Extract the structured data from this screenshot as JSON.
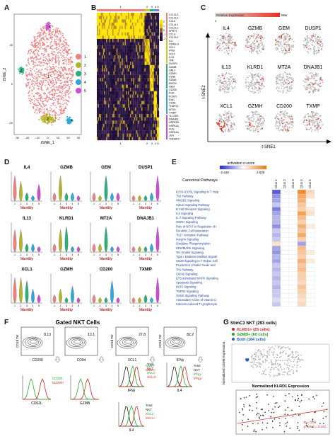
{
  "panels": {
    "A": {
      "letter": "A",
      "xlabel": "tSNE_1",
      "ylabel": "tSNE_2",
      "xticks": [
        "-30",
        "-20",
        "-10",
        "0",
        "10",
        "20",
        "30"
      ],
      "yticks": [
        "20",
        "0",
        "-20"
      ],
      "clusters": [
        {
          "id": "1",
          "color": "#f08080"
        },
        {
          "id": "2",
          "color": "#b5b52a"
        },
        {
          "id": "3",
          "color": "#2ab07a"
        },
        {
          "id": "4",
          "color": "#2aa8e0"
        },
        {
          "id": "5",
          "color": "#d04ad8"
        }
      ]
    },
    "B": {
      "letter": "B",
      "top_labels": [
        "1",
        "2",
        "3",
        "4",
        "5"
      ],
      "bottom_labels": [
        "1",
        "2",
        "3",
        "4",
        "5"
      ],
      "scale_labels": [
        "2",
        "1",
        "0",
        "-1",
        "-2"
      ],
      "genes": [
        "CCL3L3",
        "CCL4L2",
        "CCL3",
        "CCL4L1",
        "CCL3L1",
        "SPRY1",
        "CCL4",
        "CCL4L2",
        "IL4",
        "CD40LG",
        "XCL1",
        "IFNG",
        "XCL2",
        "IL13",
        "TNF",
        "DUSP1",
        "GZMB",
        "GNLY",
        "GZMH",
        "CD96",
        "GZMA",
        "EMCN",
        "GEM",
        "CD200",
        "FGR",
        "FOXP1",
        "DIA1",
        "CD3E",
        "THAP12",
        "MT2A",
        "TXNIP",
        "TLC2D0",
        "DNAJB1",
        "HSPA1B",
        "HSPA1A",
        "FOS",
        "HSPA1A",
        "JUN",
        "TNFAIP3"
      ],
      "bar_colors": [
        "#f08080",
        "#c8c820",
        "#2ab07a",
        "#2aa8e0",
        "#d04ad8"
      ]
    },
    "C": {
      "letter": "C",
      "legend_label": "Relative Expression",
      "legend_min": "0",
      "legend_max": "Max",
      "genes": [
        "IL4",
        "GZMB",
        "GEM",
        "DUSP1",
        "IL13",
        "KLRD1",
        "MT2A",
        "DNAJB1",
        "XCL1",
        "GZMH",
        "CD200",
        "TXMP"
      ],
      "xlabel": "t-SNE1",
      "ylabel": "t-SNE2"
    },
    "D": {
      "letter": "D",
      "genes": [
        "IL4",
        "GZMB",
        "GEM",
        "DUSP1",
        "IL13",
        "KLRD1",
        "MT2A",
        "DNAJB1",
        "XCL1",
        "GZMH",
        "CD200",
        "TXNIP"
      ],
      "xlabel": "Identity",
      "cluster_ticks": [
        "1",
        "2",
        "3",
        "4",
        "5"
      ]
    },
    "E": {
      "letter": "E",
      "legend_title": "activation z-score",
      "legend_min": "-2.449",
      "legend_max": "2.828",
      "header": "Canonical Pathways",
      "columns": [
        "Clus 1",
        "Clus 2",
        "Clus 3",
        "Clus 4",
        "Clus 5"
      ],
      "pathways": [
        "ICOS-ICOSL Signaling in T Help",
        "Th2 Pathway",
        "HMGB1 Signaling",
        "Sirtuin Signaling Pathway",
        "B Cell Receptor Signaling",
        "IL6 Signaling",
        "IL-7 Signaling Pathway",
        "GNRH Signaling",
        "Role of NFAT in Regulation of t",
        "Dendritic Cell Maturation",
        "Th17 Activation Pathway",
        "Integrin Signaling",
        "Oxidative Phosphorylation",
        "ERK/MAPK Signaling",
        "Tec Kinase Signaling",
        "Type I Diabetes Mellitus Signali",
        "CD28 Signaling in T Helper Cell",
        "Production of Nitric Oxide and",
        "Th1 Pathway",
        "Cdc42 Signaling",
        "LPS-stimulated MAPK Signaling",
        "Apoptosis Signaling",
        "iNOS Signaling",
        "TNFR2 Signaling",
        "GM40 Signaling Pathway",
        "Antioxidant Action of Vitamin C",
        "Calcium-induced T Lymphocyte"
      ],
      "zscores": [
        [
          -1.8,
          0.0,
          0.0,
          2.4,
          0.8
        ],
        [
          -1.2,
          0.0,
          0.0,
          1.8,
          0.6
        ],
        [
          -1.0,
          0.0,
          0.0,
          1.6,
          0.0
        ],
        [
          -0.6,
          0.0,
          0.0,
          1.2,
          0.0
        ],
        [
          -1.4,
          0.0,
          0.0,
          1.0,
          0.4
        ],
        [
          -1.0,
          0.0,
          0.0,
          2.0,
          0.6
        ],
        [
          -0.8,
          0.0,
          0.0,
          1.4,
          0.0
        ],
        [
          -0.8,
          0.0,
          0.0,
          1.0,
          0.0
        ],
        [
          -1.2,
          0.0,
          0.0,
          1.6,
          0.4
        ],
        [
          -0.6,
          0.0,
          0.0,
          1.2,
          0.0
        ],
        [
          -0.8,
          0.0,
          0.0,
          1.8,
          0.0
        ],
        [
          -0.6,
          0.0,
          0.0,
          1.0,
          0.0
        ],
        [
          0.6,
          0.0,
          0.0,
          -1.0,
          0.0
        ],
        [
          -1.0,
          0.0,
          0.0,
          1.4,
          0.0
        ],
        [
          -1.2,
          0.0,
          0.0,
          1.2,
          0.4
        ],
        [
          -0.8,
          0.0,
          0.0,
          1.0,
          0.0
        ],
        [
          -1.0,
          0.0,
          0.0,
          1.6,
          0.4
        ],
        [
          -0.6,
          0.0,
          0.0,
          1.2,
          0.0
        ],
        [
          -0.8,
          0.0,
          0.0,
          1.4,
          0.0
        ],
        [
          -0.6,
          0.0,
          0.0,
          1.0,
          0.0
        ],
        [
          -0.8,
          0.0,
          0.0,
          1.0,
          0.0
        ],
        [
          -0.6,
          0.0,
          0.0,
          0.8,
          0.0
        ],
        [
          -0.8,
          0.0,
          0.0,
          1.2,
          0.0
        ],
        [
          -0.6,
          0.0,
          0.0,
          1.0,
          0.0
        ],
        [
          -0.6,
          0.0,
          0.0,
          0.8,
          0.0
        ],
        [
          -0.4,
          0.0,
          0.0,
          0.6,
          0.0
        ],
        [
          -0.6,
          0.0,
          0.0,
          0.8,
          0.0
        ]
      ]
    },
    "F": {
      "letter": "F",
      "title": "Gated NKT Cells",
      "plots": [
        {
          "xlabel": "CD200",
          "ylabel": "CD1d Tet",
          "value": "8.13"
        },
        {
          "xlabel": "CD94",
          "ylabel": "",
          "value": "13.1"
        },
        {
          "xlabel": "XCL1",
          "ylabel": "CD1d Tet",
          "value": "27.8"
        },
        {
          "xlabel": "IFNγ",
          "ylabel": "CD1d Tet",
          "value": "82.2"
        }
      ],
      "hist_cd62l": {
        "xlabel": "CD62L",
        "legend": [
          "CD200-",
          "CD200+"
        ]
      },
      "hist_gzmb": {
        "xlabel": "GZMB"
      },
      "hist_ifng": {
        "xlabel": "IFNγ",
        "legend": [
          "GD94-",
          "GD94+"
        ]
      },
      "legend_total": [
        "Total",
        "NKT",
        "XCL1-",
        "XCL1+"
      ],
      "hist_il4": {
        "xlabel": "IL4",
        "legend": [
          "Total",
          "NKT",
          "IFNg-",
          "IFNg+"
        ]
      },
      "hist_il4b": {
        "xlabel": "IL4",
        "legend": [
          "Total",
          "NKT",
          "XCL1-",
          "XCL1+"
        ]
      }
    },
    "G": {
      "letter": "G",
      "title": "StimC3 NKT (293 cells)",
      "legend": [
        {
          "label": "KLRD1+ (25 cells)",
          "color": "#e02020"
        },
        {
          "label": "GZMB+ (60 cells)",
          "color": "#20a020"
        },
        {
          "label": "Both (184 cells)",
          "color": "#2060d0"
        }
      ],
      "ylabel": "Normalized GZMB Expression",
      "xlabel": "Normalized KLRD1 Expression",
      "stats": [
        "R = 0.09",
        "p-value = 0.141"
      ]
    }
  }
}
